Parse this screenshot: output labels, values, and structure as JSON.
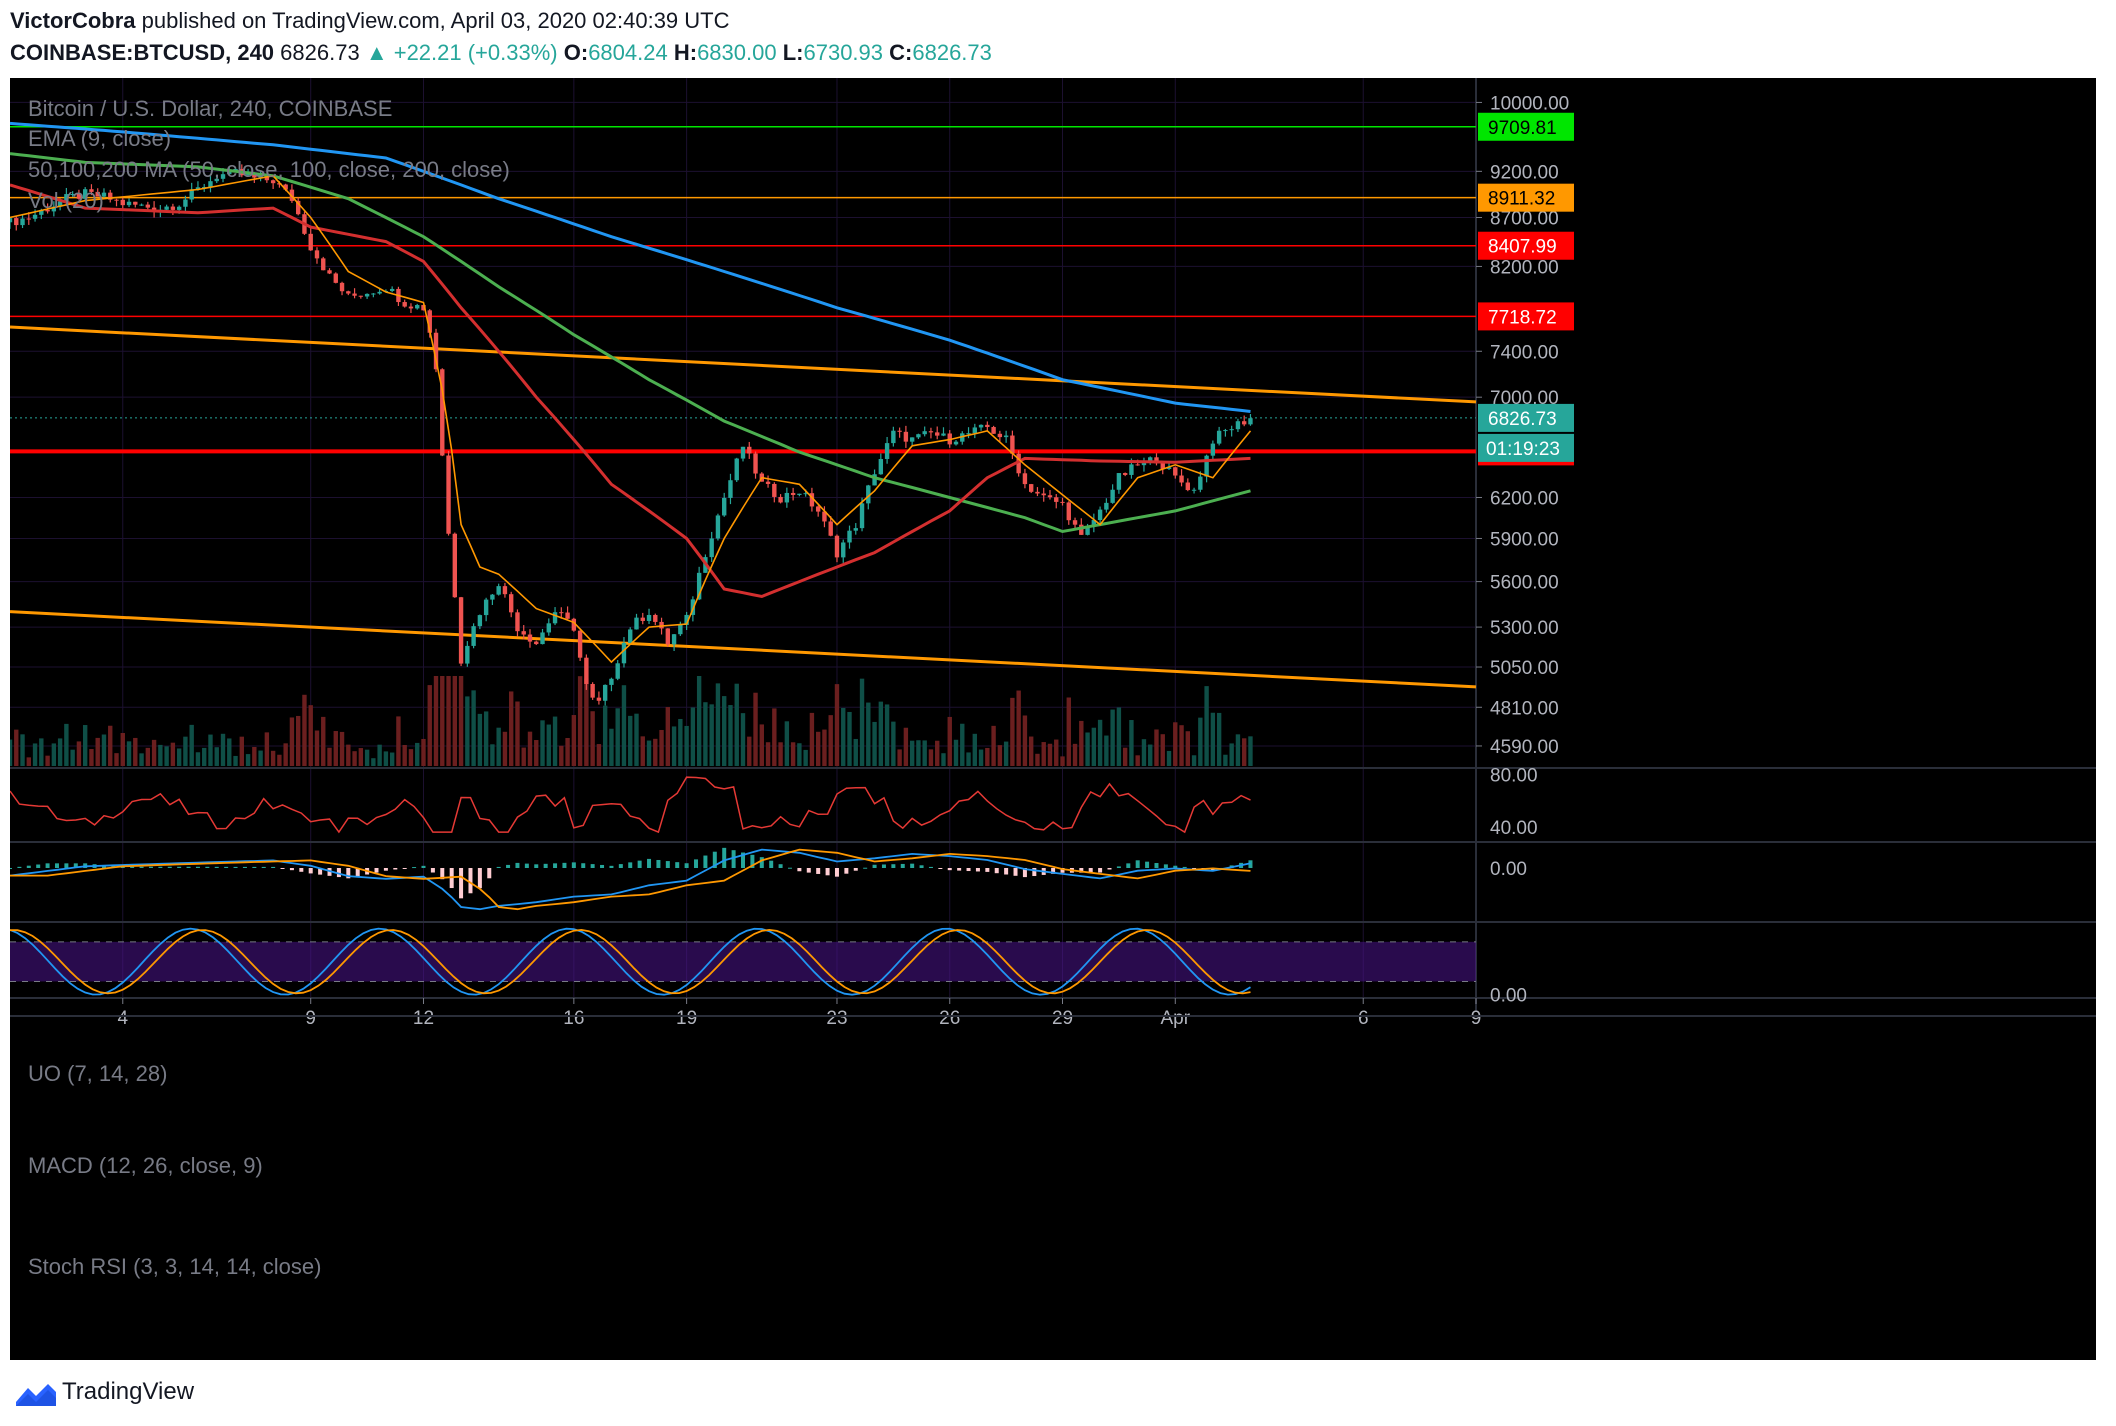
{
  "header": {
    "author": "VictorCobra",
    "published": "published on TradingView.com, April 03, 2020 02:40:39 UTC",
    "symbol": "COINBASE:BTCUSD, 240",
    "last": "6826.73",
    "change": "▲ +22.21 (+0.33%)",
    "o_label": "O:",
    "o_val": "6804.24",
    "h_label": "H:",
    "h_val": "6830.00",
    "l_label": "L:",
    "l_val": "6730.93",
    "c_label": "C:",
    "c_val": "6826.73"
  },
  "footer": {
    "brand": "TradingView"
  },
  "colors": {
    "up": "#26a69a",
    "down": "#ef5350",
    "ema": "#ff9800",
    "ma50": "#d32f2f",
    "ma100": "#4caf50",
    "ma200": "#2196f3",
    "uo": "#e53935",
    "macd": "#2196f3",
    "signal": "#ff9800",
    "stoch_k": "#2196f3",
    "stoch_d": "#ff9800",
    "stoch_band": "#4a148c"
  },
  "chart_data": {
    "type": "candlestick",
    "title": "Bitcoin / U.S. Dollar, 240, COINBASE",
    "indicators": [
      "EMA (9, close)",
      "50,100,200 MA (50, close, 100, close, 200, close)",
      "Vol (20)"
    ],
    "y_ticks": [
      "10000.00",
      "9200.00",
      "8700.00",
      "8200.00",
      "7400.00",
      "7000.00",
      "6200.00",
      "5900.00",
      "5600.00",
      "5300.00",
      "5050.00",
      "4810.00",
      "4590.00"
    ],
    "y_tick_values": [
      10000,
      9200,
      8700,
      8200,
      7400,
      7000,
      6200,
      5900,
      5600,
      5300,
      5050,
      4810,
      4590
    ],
    "x_ticks": [
      "4",
      "9",
      "12",
      "16",
      "19",
      "23",
      "26",
      "29",
      "Apr",
      "6",
      "9"
    ],
    "x_tick_days": [
      4,
      9,
      12,
      16,
      19,
      23,
      26,
      29,
      32,
      37,
      40
    ],
    "x_range_days": [
      1,
      40
    ],
    "y_range": [
      4480,
      10300
    ],
    "scale": "log",
    "horizontal_levels": [
      {
        "value": 9709.81,
        "label": "9709.81",
        "color": "#00e600"
      },
      {
        "value": 8911.32,
        "label": "8911.32",
        "color": "#ff9800"
      },
      {
        "value": 8407.99,
        "label": "8407.99",
        "color": "#ff0000"
      },
      {
        "value": 7718.72,
        "label": "7718.72",
        "color": "#ff0000"
      },
      {
        "value": 6555.6,
        "label": "6555.60",
        "color": "#ff0000"
      }
    ],
    "price_badge": {
      "value": 6826.73,
      "label": "6826.73",
      "timer": "01:19:23"
    },
    "trendlines": [
      {
        "from": [
          1,
          7620
        ],
        "to": [
          40,
          6960
        ],
        "color": "#ff9800"
      },
      {
        "from": [
          1,
          5400
        ],
        "to": [
          40,
          4930
        ],
        "color": "#ff9800"
      }
    ],
    "closes": [
      [
        1.0,
        8650
      ],
      [
        1.5,
        8700
      ],
      [
        2.0,
        8800
      ],
      [
        2.5,
        8900
      ],
      [
        3.0,
        8950
      ],
      [
        3.5,
        8920
      ],
      [
        4.0,
        8850
      ],
      [
        4.5,
        8820
      ],
      [
        5.0,
        8800
      ],
      [
        5.5,
        8850
      ],
      [
        6.0,
        9000
      ],
      [
        6.5,
        9150
      ],
      [
        7.0,
        9180
      ],
      [
        7.5,
        9120
      ],
      [
        8.0,
        9100
      ],
      [
        8.5,
        8900
      ],
      [
        9.0,
        8400
      ],
      [
        9.5,
        8100
      ],
      [
        10.0,
        7900
      ],
      [
        10.5,
        7950
      ],
      [
        11.0,
        8000
      ],
      [
        11.5,
        7850
      ],
      [
        12.0,
        7800
      ],
      [
        12.3,
        7400
      ],
      [
        12.6,
        6100
      ],
      [
        13.0,
        5100
      ],
      [
        13.5,
        5400
      ],
      [
        14.0,
        5600
      ],
      [
        14.5,
        5300
      ],
      [
        15.0,
        5200
      ],
      [
        15.5,
        5400
      ],
      [
        16.0,
        5300
      ],
      [
        16.3,
        4950
      ],
      [
        16.6,
        4800
      ],
      [
        17.0,
        5000
      ],
      [
        17.5,
        5300
      ],
      [
        18.0,
        5400
      ],
      [
        18.5,
        5200
      ],
      [
        19.0,
        5350
      ],
      [
        19.5,
        5800
      ],
      [
        20.0,
        6200
      ],
      [
        20.5,
        6600
      ],
      [
        21.0,
        6300
      ],
      [
        21.5,
        6200
      ],
      [
        22.0,
        6250
      ],
      [
        22.5,
        6100
      ],
      [
        23.0,
        5800
      ],
      [
        23.5,
        6000
      ],
      [
        24.0,
        6400
      ],
      [
        24.5,
        6700
      ],
      [
        25.0,
        6650
      ],
      [
        25.5,
        6700
      ],
      [
        26.0,
        6650
      ],
      [
        26.5,
        6700
      ],
      [
        27.0,
        6750
      ],
      [
        27.5,
        6650
      ],
      [
        28.0,
        6300
      ],
      [
        28.5,
        6200
      ],
      [
        29.0,
        6150
      ],
      [
        29.5,
        5900
      ],
      [
        30.0,
        6100
      ],
      [
        30.5,
        6350
      ],
      [
        31.0,
        6450
      ],
      [
        31.5,
        6500
      ],
      [
        32.0,
        6350
      ],
      [
        32.5,
        6250
      ],
      [
        33.0,
        6650
      ],
      [
        33.5,
        6750
      ],
      [
        34.0,
        6826.73
      ]
    ],
    "ema9": [
      [
        1,
        8700
      ],
      [
        3,
        8880
      ],
      [
        6,
        9000
      ],
      [
        8,
        9150
      ],
      [
        9,
        8700
      ],
      [
        10,
        8150
      ],
      [
        11,
        7950
      ],
      [
        12,
        7850
      ],
      [
        12.6,
        6900
      ],
      [
        13,
        6000
      ],
      [
        13.5,
        5700
      ],
      [
        14,
        5650
      ],
      [
        15,
        5420
      ],
      [
        16,
        5330
      ],
      [
        17,
        5080
      ],
      [
        18,
        5300
      ],
      [
        19,
        5320
      ],
      [
        20,
        5900
      ],
      [
        21,
        6350
      ],
      [
        22,
        6300
      ],
      [
        23,
        6000
      ],
      [
        24,
        6250
      ],
      [
        25,
        6600
      ],
      [
        26,
        6650
      ],
      [
        27,
        6720
      ],
      [
        28,
        6450
      ],
      [
        29,
        6220
      ],
      [
        30,
        6000
      ],
      [
        31,
        6350
      ],
      [
        32,
        6450
      ],
      [
        33,
        6350
      ],
      [
        34,
        6720
      ]
    ],
    "ma50": [
      [
        1,
        9050
      ],
      [
        3,
        8800
      ],
      [
        6,
        8750
      ],
      [
        8,
        8800
      ],
      [
        9,
        8600
      ],
      [
        11,
        8450
      ],
      [
        12,
        8250
      ],
      [
        13,
        7800
      ],
      [
        15,
        7000
      ],
      [
        17,
        6300
      ],
      [
        19,
        5900
      ],
      [
        20,
        5550
      ],
      [
        21,
        5500
      ],
      [
        22,
        5600
      ],
      [
        24,
        5800
      ],
      [
        26,
        6100
      ],
      [
        27,
        6350
      ],
      [
        28,
        6500
      ],
      [
        30,
        6480
      ],
      [
        32,
        6470
      ],
      [
        34,
        6500
      ]
    ],
    "ma100": [
      [
        1,
        9400
      ],
      [
        3,
        9300
      ],
      [
        6,
        9250
      ],
      [
        8,
        9150
      ],
      [
        10,
        8900
      ],
      [
        12,
        8500
      ],
      [
        14,
        8000
      ],
      [
        16,
        7550
      ],
      [
        18,
        7150
      ],
      [
        20,
        6800
      ],
      [
        22,
        6550
      ],
      [
        24,
        6350
      ],
      [
        26,
        6200
      ],
      [
        28,
        6050
      ],
      [
        29,
        5950
      ],
      [
        30,
        6000
      ],
      [
        32,
        6100
      ],
      [
        34,
        6250
      ]
    ],
    "ma200": [
      [
        1,
        9750
      ],
      [
        4,
        9650
      ],
      [
        8,
        9500
      ],
      [
        11,
        9350
      ],
      [
        14,
        8900
      ],
      [
        17,
        8500
      ],
      [
        20,
        8150
      ],
      [
        23,
        7800
      ],
      [
        26,
        7500
      ],
      [
        29,
        7150
      ],
      [
        32,
        6950
      ],
      [
        34,
        6880
      ]
    ],
    "volume_panel": {
      "label": "Vol (20)"
    },
    "uo": {
      "label": "UO (7, 14, 28)",
      "ticks": [
        "80.00",
        "40.00"
      ],
      "tick_values": [
        80,
        40
      ],
      "range": [
        30,
        85
      ]
    },
    "macd": {
      "label": "MACD (12, 26, close, 9)",
      "ticks": [
        "0.00"
      ],
      "tick_values": [
        0
      ],
      "range": [
        -600,
        300
      ]
    },
    "stoch_rsi": {
      "label": "Stoch RSI (3, 3, 14, 14, close)",
      "ticks": [
        "0.00"
      ],
      "tick_values": [
        0
      ],
      "range": [
        -5,
        110
      ],
      "bands": [
        80,
        20
      ]
    }
  }
}
